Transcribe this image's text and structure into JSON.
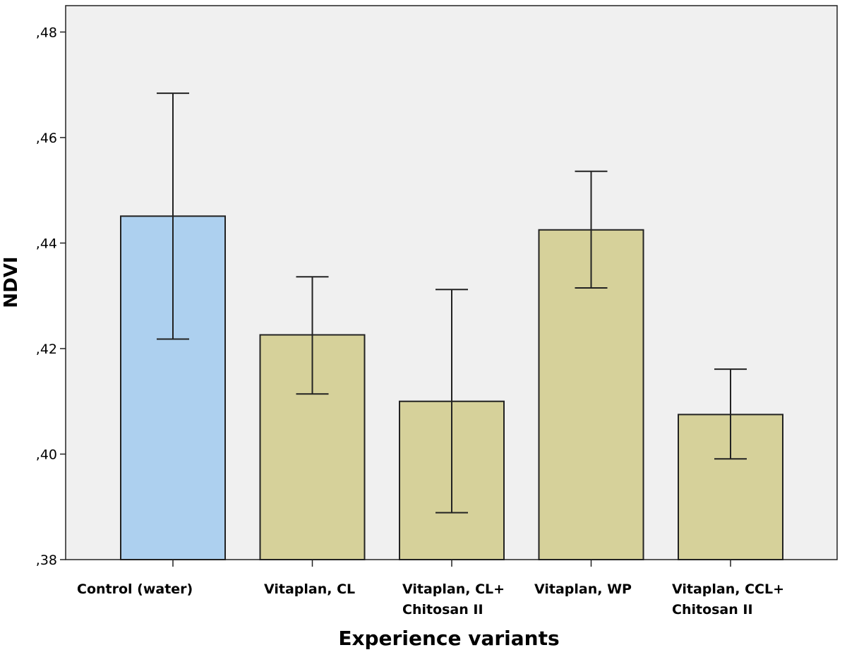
{
  "chart_data": {
    "type": "bar",
    "title": "",
    "xlabel": "Experience variants",
    "ylabel": "NDVI",
    "ylim": [
      0.38,
      0.485
    ],
    "yticks": [
      0.38,
      0.4,
      0.42,
      0.44,
      0.46,
      0.48
    ],
    "ytick_labels": [
      ",38",
      ",40",
      ",42",
      ",44",
      ",46",
      ",48"
    ],
    "categories": [
      [
        "Control (water)"
      ],
      [
        "Vitaplan, CL"
      ],
      [
        "Vitaplan, CL+",
        "Chitosan II"
      ],
      [
        "Vitaplan,  WP"
      ],
      [
        "Vitaplan, CCL+",
        "Chitosan II"
      ]
    ],
    "values": [
      0.4451,
      0.4226,
      0.41,
      0.4425,
      0.4075
    ],
    "error_low": [
      0.4218,
      0.4114,
      0.3889,
      0.4315,
      0.3991
    ],
    "error_high": [
      0.4684,
      0.4336,
      0.4312,
      0.4536,
      0.4161
    ],
    "colors": [
      "#add0ef",
      "#d6d19a",
      "#d6d19a",
      "#d6d19a",
      "#d6d19a"
    ],
    "plot_background": "#f0f0f0",
    "grid": false
  }
}
